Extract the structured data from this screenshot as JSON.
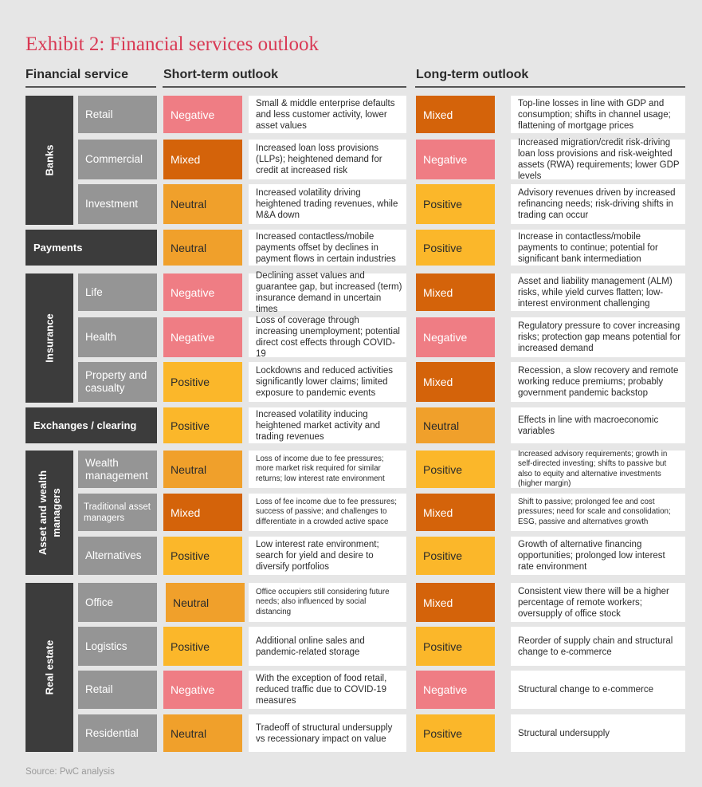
{
  "title": "Exhibit 2: Financial services outlook",
  "headers": {
    "service": "Financial service",
    "short": "Short-term outlook",
    "long": "Long-term outlook"
  },
  "colors": {
    "Negative": "#ef7d84",
    "Mixed": "#d4630a",
    "Neutral": "#f0a02b",
    "Positive": "#fbb72a"
  },
  "groups": [
    {
      "label": "Banks"
    },
    {
      "label": "Payments"
    },
    {
      "label": "Insurance"
    },
    {
      "label": "Exchanges / clearing"
    },
    {
      "label": "Asset and wealth\nmanagers"
    },
    {
      "label": "Real estate"
    }
  ],
  "rows": [
    {
      "service": "Retail",
      "short": "Negative",
      "short_text": "Small & middle enterprise defaults and less customer activity, lower asset values",
      "long": "Mixed",
      "long_text": "Top-line losses in line with GDP and consumption; shifts in channel usage; flattening of mortgage prices"
    },
    {
      "service": "Commercial",
      "short": "Mixed",
      "short_text": "Increased loan loss provisions (LLPs); heightened demand for credit at increased risk",
      "long": "Negative",
      "long_text": "Increased migration/credit risk-driving loan loss provisions and risk-weighted assets (RWA) requirements; lower GDP levels"
    },
    {
      "service": "Investment",
      "short": "Neutral",
      "short_text": "Increased volatility driving heightened trading revenues, while M&A down",
      "long": "Positive",
      "long_text": "Advisory revenues driven by increased refinancing needs; risk-driving shifts in trading can occur"
    },
    {
      "service": "Payments",
      "short": "Neutral",
      "short_text": "Increased contactless/mobile payments offset by declines in payment flows in certain industries",
      "long": "Positive",
      "long_text": "Increase in contactless/mobile payments to continue; potential for significant bank intermediation"
    },
    {
      "service": "Life",
      "short": "Negative",
      "short_text": "Declining asset values and guarantee gap, but increased (term) insurance demand in uncertain times",
      "long": "Mixed",
      "long_text": "Asset and liability management (ALM) risks, while yield curves flatten; low-interest environment challenging"
    },
    {
      "service": "Health",
      "short": "Negative",
      "short_text": "Loss of coverage through increasing unemployment; potential direct cost effects through COVID-19",
      "long": "Negative",
      "long_text": "Regulatory pressure to cover increasing risks; protection gap means potential for increased demand"
    },
    {
      "service": "Property and casualty",
      "short": "Positive",
      "short_text": "Lockdowns and reduced activities significantly lower claims; limited exposure to pandemic events",
      "long": "Mixed",
      "long_text": "Recession, a slow recovery and remote working reduce premiums; probably government pandemic backstop"
    },
    {
      "service": "Exchanges / clearing",
      "short": "Positive",
      "short_text": "Increased volatility inducing heightened market activity and trading revenues",
      "long": "Neutral",
      "long_text": "Effects in line with macroeconomic variables"
    },
    {
      "service": "Wealth management",
      "short": "Neutral",
      "short_text": "Loss of income due to fee pressures; more market risk required for similar returns; low interest rate environment",
      "long": "Positive",
      "long_text": "Increased advisory requirements; growth in self-directed investing; shifts to passive but also to equity and alternative investments (higher margin)"
    },
    {
      "service": "Traditional asset managers",
      "short": "Mixed",
      "short_text": "Loss of fee income due to fee pressures; success of passive; and challenges to differentiate in a crowded active space",
      "long": "Mixed",
      "long_text": "Shift to passive; prolonged fee and cost pressures; need for scale and consolidation; ESG, passive and alternatives growth"
    },
    {
      "service": "Alternatives",
      "short": "Positive",
      "short_text": "Low interest rate environment; search for yield and desire to diversify portfolios",
      "long": "Positive",
      "long_text": "Growth of alternative financing opportunities; prolonged low interest rate environment"
    },
    {
      "service": "Office",
      "short": "Neutral",
      "short_text": "Office occupiers still considering future needs; also influenced by social distancing",
      "long": "Mixed",
      "long_text": "Consistent view there will be a higher percentage of remote workers; oversupply of office stock"
    },
    {
      "service": "Logistics",
      "short": "Positive",
      "short_text": "Additional online sales and pandemic-related storage",
      "long": "Positive",
      "long_text": "Reorder of supply chain and structural change to e-commerce"
    },
    {
      "service": "Retail",
      "short": "Negative",
      "short_text": "With the exception of food retail, reduced traffic due to COVID-19 measures",
      "long": "Negative",
      "long_text": "Structural change to e-commerce"
    },
    {
      "service": "Residential",
      "short": "Neutral",
      "short_text": "Tradeoff of structural undersupply vs recessionary impact on value",
      "long": "Positive",
      "long_text": "Structural undersupply"
    }
  ],
  "source": "Source: PwC analysis"
}
